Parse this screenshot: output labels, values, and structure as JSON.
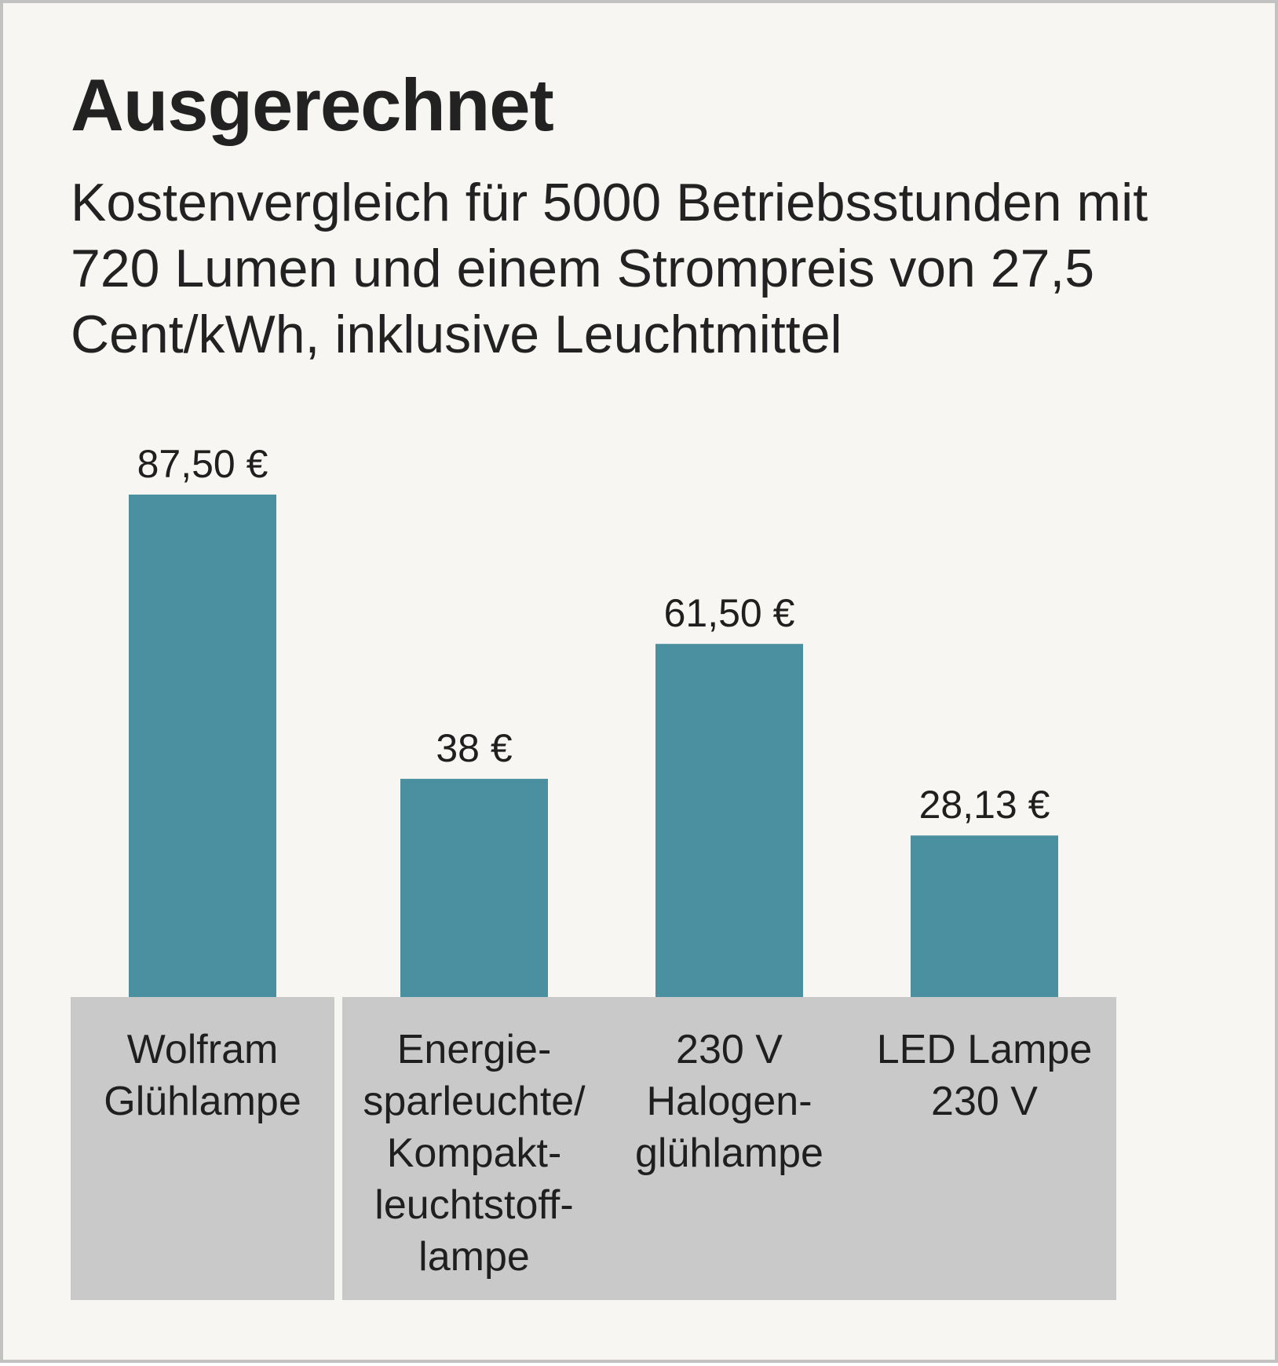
{
  "header": {
    "title": "Ausgerechnet",
    "subtitle": "Kostenvergleich für 5000 Betriebsstunden mit 720 Lumen und einem Strompreis von 27,5 Cent/kWh, inklusive Leuchtmittel"
  },
  "colors": {
    "background": "#f7f6f2",
    "border": "#c2c2c2",
    "bar": "#4a90a0",
    "category_box": "#c8c9c8",
    "text": "#222222"
  },
  "chart_data": {
    "type": "bar",
    "title": "Ausgerechnet",
    "subtitle": "Kostenvergleich für 5000 Betriebsstunden mit 720 Lumen und einem Strompreis von 27,5 Cent/kWh, inklusive Leuchtmittel",
    "unit": "€",
    "xlabel": "",
    "ylabel": "",
    "ylim": [
      0,
      100
    ],
    "grid": false,
    "legend": "none",
    "categories": [
      [
        "Wolfram",
        "Glühlampe"
      ],
      [
        "Energie-",
        "sparleuchte/",
        "Kompakt-",
        "leuchtstoff-",
        "lampe"
      ],
      [
        "230 V",
        "Halogen-",
        "glühlampe"
      ],
      [
        "LED Lampe",
        "230 V"
      ]
    ],
    "values": [
      87.5,
      38,
      61.5,
      28.13
    ],
    "value_labels": [
      "87,50 €",
      "38  €",
      "61,50 €",
      "28,13 €"
    ]
  }
}
